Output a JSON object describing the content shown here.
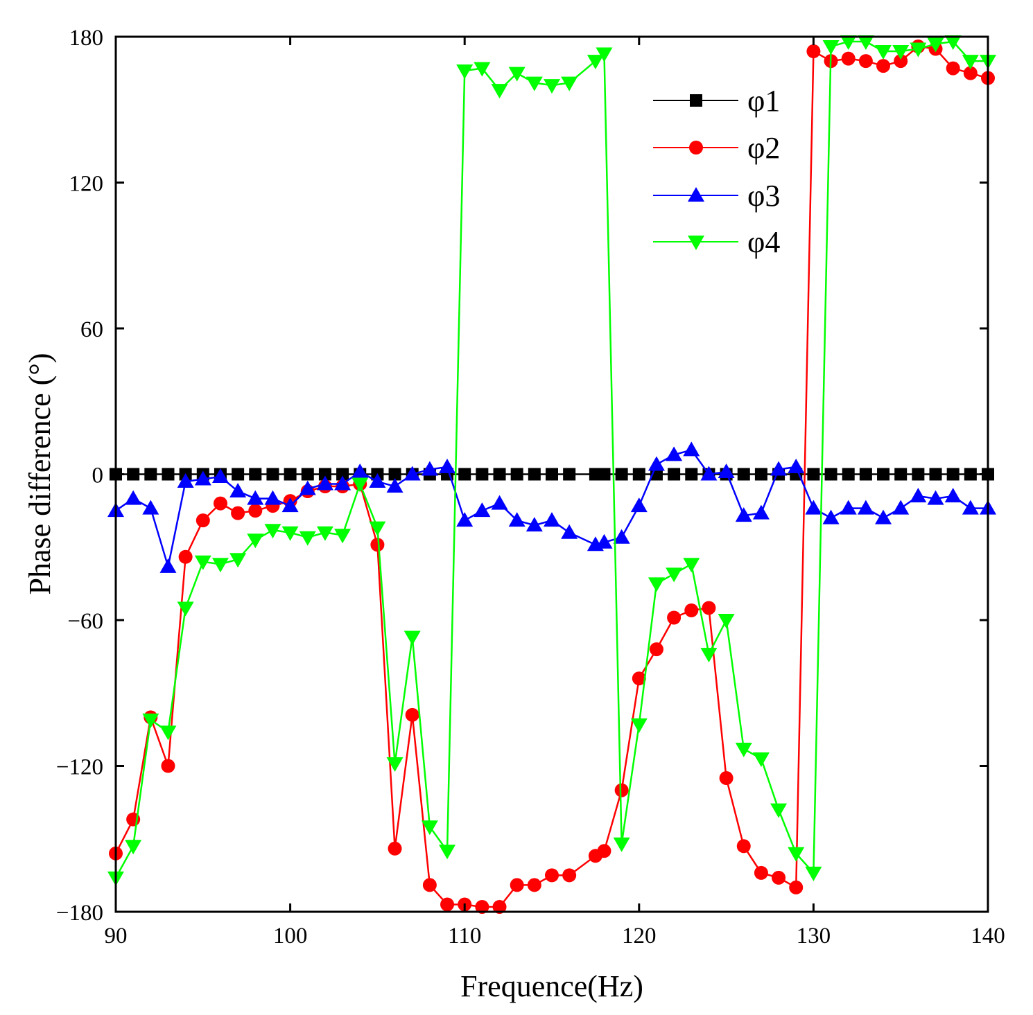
{
  "chart_data": {
    "type": "line",
    "title": "",
    "xlabel": "Frequence(Hz)",
    "ylabel": "Phase difference (°)",
    "xlim": [
      90,
      140
    ],
    "ylim": [
      -180,
      180
    ],
    "xticks": [
      90,
      100,
      110,
      120,
      130,
      140
    ],
    "yticks": [
      -180,
      -120,
      -60,
      0,
      60,
      120,
      180
    ],
    "xtick_labels": [
      "90",
      "100",
      "110",
      "120",
      "130",
      "140"
    ],
    "ytick_labels": [
      "−180",
      "−120",
      "−60",
      "0",
      "60",
      "120",
      "180"
    ],
    "grid": false,
    "legend_position": "top-right",
    "series": [
      {
        "name": "φ1",
        "color": "#000000",
        "marker": "square",
        "x": [
          90,
          91,
          92,
          93,
          94,
          95,
          96,
          97,
          98,
          99,
          100,
          101,
          102,
          103,
          104,
          105,
          106,
          107,
          108,
          109,
          110,
          111,
          112,
          113,
          114,
          115,
          116,
          117.5,
          118,
          119,
          120,
          121,
          122,
          123,
          124,
          125,
          126,
          127,
          128,
          129,
          130,
          131,
          132,
          133,
          134,
          135,
          136,
          137,
          138,
          139,
          140
        ],
        "y": [
          0,
          0,
          0,
          0,
          0,
          0,
          0,
          0,
          0,
          0,
          0,
          0,
          0,
          0,
          0,
          0,
          0,
          0,
          0,
          0,
          0,
          0,
          0,
          0,
          0,
          0,
          0,
          0,
          0,
          0,
          0,
          0,
          0,
          0,
          0,
          0,
          0,
          0,
          0,
          0,
          0,
          0,
          0,
          0,
          0,
          0,
          0,
          0,
          0,
          0,
          0
        ]
      },
      {
        "name": "φ2",
        "color": "#ff0000",
        "marker": "circle",
        "x": [
          90,
          91,
          92,
          93,
          94,
          95,
          96,
          97,
          98,
          99,
          100,
          101,
          102,
          103,
          104,
          105,
          106,
          107,
          108,
          109,
          110,
          111,
          112,
          113,
          114,
          115,
          116,
          117.5,
          118,
          119,
          120,
          121,
          122,
          123,
          124,
          125,
          126,
          127,
          128,
          129,
          130,
          131,
          132,
          133,
          134,
          135,
          136,
          137,
          138,
          139,
          140
        ],
        "y": [
          -156,
          -142,
          -100,
          -120,
          -34,
          -19,
          -12,
          -16,
          -15,
          -13,
          -11,
          -7,
          -5,
          -5,
          -4,
          -29,
          -154,
          -99,
          -169,
          -177,
          -177,
          -178,
          -178,
          -169,
          -169,
          -165,
          -165,
          -157,
          -155,
          -130,
          -84,
          -72,
          -59,
          -56,
          -55,
          -125,
          -153,
          -164,
          -166,
          -170,
          174,
          170,
          171,
          170,
          168,
          170,
          176,
          175,
          167,
          165,
          163
        ]
      },
      {
        "name": "φ3",
        "color": "#0000ff",
        "marker": "triangle-up",
        "x": [
          90,
          91,
          92,
          93,
          94,
          95,
          96,
          97,
          98,
          99,
          100,
          101,
          102,
          103,
          104,
          105,
          106,
          107,
          108,
          109,
          110,
          111,
          112,
          113,
          114,
          115,
          116,
          117.5,
          118,
          119,
          120,
          121,
          122,
          123,
          124,
          125,
          126,
          127,
          128,
          129,
          130,
          131,
          132,
          133,
          134,
          135,
          136,
          137,
          138,
          139,
          140
        ],
        "y": [
          -15,
          -10,
          -14,
          -38,
          -3,
          -2,
          -1,
          -7,
          -10,
          -10,
          -13,
          -6,
          -4,
          -4,
          1,
          -3,
          -5,
          0,
          2,
          3,
          -19,
          -15,
          -12,
          -19,
          -21,
          -19,
          -24,
          -29,
          -28,
          -26,
          -13,
          4,
          8,
          10,
          0,
          1,
          -17,
          -16,
          2,
          3,
          -14,
          -18,
          -14,
          -14,
          -18,
          -14,
          -9,
          -10,
          -9,
          -14,
          -14
        ]
      },
      {
        "name": "φ4",
        "color": "#00ff00",
        "marker": "triangle-down",
        "x": [
          90,
          91,
          92,
          93,
          94,
          95,
          96,
          97,
          98,
          99,
          100,
          101,
          102,
          103,
          104,
          105,
          106,
          107,
          108,
          109,
          110,
          111,
          112,
          113,
          114,
          115,
          116,
          117.5,
          118,
          119,
          120,
          121,
          122,
          123,
          124,
          125,
          126,
          127,
          128,
          129,
          130,
          131,
          132,
          133,
          134,
          135,
          136,
          137,
          138,
          139,
          140
        ],
        "y": [
          -166,
          -153,
          -101,
          -106,
          -55,
          -36,
          -37,
          -35,
          -27,
          -23,
          -24,
          -26,
          -24,
          -25,
          -4,
          -22,
          -119,
          -67,
          -145,
          -155,
          166,
          167,
          158,
          165,
          161,
          160,
          161,
          170,
          173,
          -152,
          -103,
          -45,
          -41,
          -37,
          -74,
          -60,
          -113,
          -117,
          -138,
          -156,
          -164,
          176,
          178,
          178,
          174,
          174,
          175,
          177,
          178,
          170,
          170
        ]
      }
    ]
  }
}
